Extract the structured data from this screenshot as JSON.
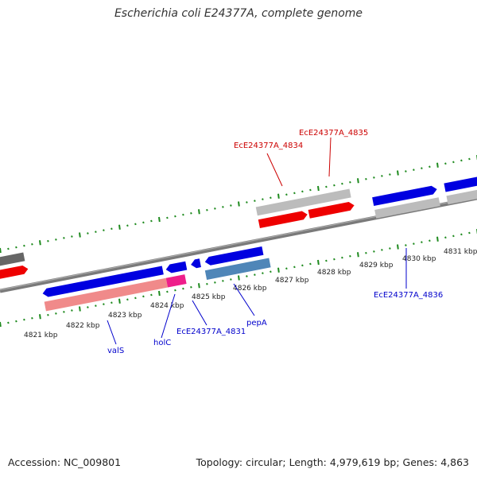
{
  "title": "Escherichia coli E24377A, complete genome",
  "footer": {
    "accession": "Accession: NC_009801",
    "summary": "Topology: circular; Length: 4,979,619 bp; Genes: 4,863"
  },
  "colors": {
    "backbone": "#7a7a7a",
    "ticks": "#1e8a1e",
    "forward_gene": "#0000e0",
    "reverse_gene": "#ee0000",
    "cds_light": "#bcbcbc",
    "cds_pink": "#f08a8a",
    "cds_magenta": "#ee1f8a",
    "cds_steel": "#4f86b8",
    "gene_dark": "#666666",
    "label_red": "#cc0000",
    "label_blue": "#0000cc"
  },
  "kbp_labels": [
    "4821 kbp",
    "4822 kbp",
    "4823 kbp",
    "4824 kbp",
    "4825 kbp",
    "4826 kbp",
    "4827 kbp",
    "4828 kbp",
    "4829 kbp",
    "4830 kbp",
    "4831 kbp"
  ],
  "gene_labels": [
    {
      "id": "EcE24377A_4834",
      "color": "label_red"
    },
    {
      "id": "EcE24377A_4835",
      "color": "label_red"
    },
    {
      "id": "EcE24377A_4836",
      "color": "label_blue"
    },
    {
      "id": "valS",
      "color": "label_blue"
    },
    {
      "id": "holC",
      "color": "label_blue"
    },
    {
      "id": "EcE24377A_4831",
      "color": "label_blue"
    },
    {
      "id": "pepA",
      "color": "label_blue"
    }
  ]
}
